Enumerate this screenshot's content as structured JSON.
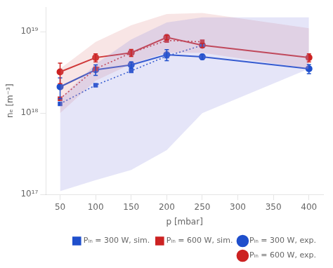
{
  "chart_data": {
    "type": "line",
    "xlabel": "p [mbar]",
    "ylabel": "nₑ [m⁻³]",
    "log": "y",
    "grid": false,
    "legend": "lower right",
    "xlim": [
      30,
      420
    ],
    "xticks": [
      50,
      100,
      150,
      200,
      250,
      300,
      350,
      400
    ],
    "ylim": [
      1e+17,
      2e+19
    ],
    "yticks": [
      {
        "value": 1e+17,
        "label": "10¹⁷"
      },
      {
        "value": 1e+18,
        "label": "10¹⁸"
      },
      {
        "value": 1e+19,
        "label": "10¹⁹"
      }
    ],
    "series": [
      {
        "type": "band",
        "color": "#8888dd",
        "x": [
          50,
          100,
          150,
          200,
          250,
          400
        ],
        "lower": [
          1.1e+17,
          1.5e+17,
          2e+17,
          3.5e+17,
          1e+18,
          3.5e+18
        ],
        "upper": [
          1.5e+18,
          4e+18,
          8e+18,
          1.3e+19,
          1.5e+19,
          1.5e+19
        ]
      },
      {
        "type": "band",
        "color": "#dd8888",
        "x": [
          50,
          100,
          150,
          200,
          250,
          400
        ],
        "lower": [
          1e+18,
          2.5e+18,
          4e+18,
          5.5e+18,
          5.5e+18,
          3.5e+18
        ],
        "upper": [
          3.5e+18,
          7.5e+18,
          1.2e+19,
          1.65e+19,
          1.7e+19,
          1.1e+19
        ]
      },
      {
        "name": "Pᵢₙ = 300 W, sim.",
        "color": "#1f4fcc",
        "marker": "square",
        "line_style": "dotted",
        "x": [
          50,
          100,
          150,
          200,
          250
        ],
        "values": [
          1.3e+18,
          2.2e+18,
          3.3e+18,
          5e+18,
          6.8e+18
        ]
      },
      {
        "name": "Pᵢₙ = 600 W, sim.",
        "color": "#cc2222",
        "marker": "square",
        "line_style": "dotted",
        "x": [
          50,
          100,
          150,
          200,
          250
        ],
        "values": [
          1.5e+18,
          3.5e+18,
          5.5e+18,
          7.8e+18,
          7.5e+18
        ]
      },
      {
        "name": "Pᵢₙ = 300 W, exp.",
        "color": "#1f4fcc",
        "marker": "circle",
        "line_style": "solid",
        "x": [
          50,
          100,
          150,
          200,
          250,
          400
        ],
        "values": [
          2.1e+18,
          3.4e+18,
          3.9e+18,
          5.2e+18,
          4.9e+18,
          3.5e+18
        ],
        "yerr_lo": [
          6e+17,
          5e+17,
          3.5e+17,
          8e+17,
          3.5e+17,
          4.5e+17
        ],
        "yerr_hi": [
          6e+17,
          5e+17,
          3.5e+17,
          8e+17,
          3.5e+17,
          4.5e+17
        ]
      },
      {
        "name": "Pᵢₙ = 600 W, exp.",
        "color": "#cc2222",
        "marker": "circle",
        "line_style": "solid",
        "x": [
          50,
          100,
          150,
          200,
          250,
          400
        ],
        "values": [
          3.2e+18,
          4.8e+18,
          5.5e+18,
          8.5e+18,
          6.8e+18,
          4.8e+18
        ],
        "yerr_lo": [
          9e+17,
          5.5e+17,
          5.5e+17,
          5.5e+17,
          4e+17,
          5.5e+17
        ],
        "yerr_hi": [
          9e+17,
          5.5e+17,
          5.5e+17,
          5.5e+17,
          4e+17,
          5.5e+17
        ]
      }
    ]
  }
}
